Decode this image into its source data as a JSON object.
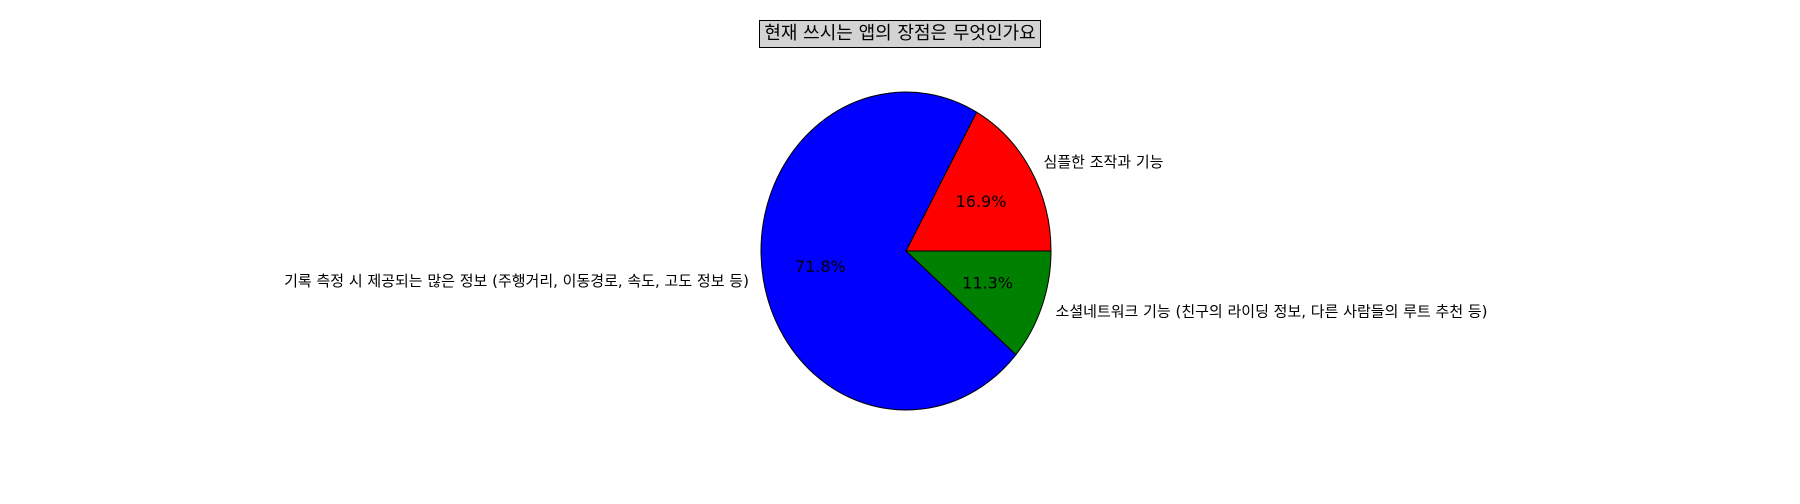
{
  "chart_data": {
    "type": "pie",
    "title": "현재 쓰시는 앱의 장점은 무엇인가요",
    "slices": [
      {
        "label": "심플한 조작과 기능",
        "pct_label": "16.9%",
        "value": 16.9,
        "color": "#ff0000"
      },
      {
        "label": "기록 측정 시 제공되는 많은 정보 (주행거리, 이동경로, 속도, 고도 정보 등)",
        "pct_label": "71.8%",
        "value": 71.8,
        "color": "#0000ff"
      },
      {
        "label": "소셜네트워크 기능 (친구의 라이딩 정보, 다른 사람들의 루트 추천 등)",
        "pct_label": "11.3%",
        "value": 11.3,
        "color": "#008000"
      }
    ],
    "start_angle_deg": 0,
    "direction": "counterclockwise",
    "legend": "none"
  }
}
